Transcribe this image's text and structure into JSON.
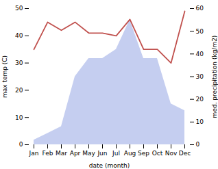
{
  "chart_data": {
    "type": "line",
    "categories": [
      "Jan",
      "Feb",
      "Mar",
      "Apr",
      "May",
      "Jun",
      "Jul",
      "Aug",
      "Sep",
      "Oct",
      "Nov",
      "Dec"
    ],
    "xlabel": "date (month)",
    "ylabel": "max temp (C)",
    "y2label": "med. precipitation (kg/m2)",
    "ylim": [
      0,
      50
    ],
    "yticks": [
      0,
      10,
      20,
      30,
      40,
      50
    ],
    "y2lim": [
      0,
      60
    ],
    "y2ticks": [
      0,
      10,
      20,
      30,
      40,
      50,
      60
    ],
    "series": [
      {
        "type": "area",
        "axis": "y2",
        "color": "#c5cef0",
        "values": [
          2,
          5,
          8,
          30,
          38,
          38,
          42,
          55,
          38,
          38,
          18,
          15
        ]
      },
      {
        "type": "line",
        "color": "#c0504d",
        "values": [
          35,
          45,
          42,
          45,
          41,
          41,
          40,
          46,
          35,
          35,
          30,
          49
        ]
      }
    ]
  }
}
